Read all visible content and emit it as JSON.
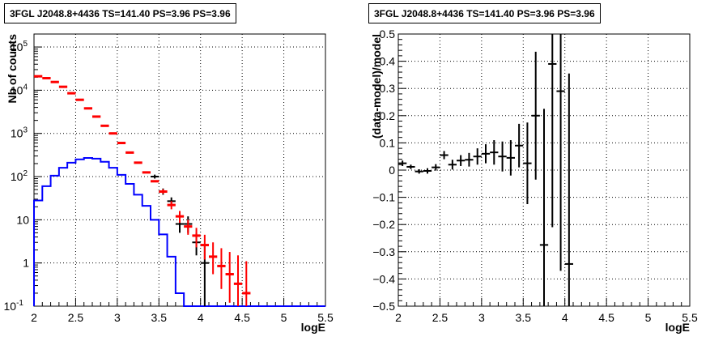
{
  "chart_data": [
    {
      "type": "histogram",
      "title": "3FGL J2048.8+4436 TS=141.40 PS=3.96 PS=3.96",
      "xlabel": "logE",
      "ylabel": "Nb of counts",
      "xlim": [
        2,
        5.5
      ],
      "ylim": [
        0.1,
        200000
      ],
      "y_scale": "log",
      "grid": true,
      "x_ticks": [
        "2",
        "2.5",
        "3",
        "3.5",
        "4",
        "4.5",
        "5",
        "5.5"
      ],
      "y_ticks": [
        {
          "value": 0.1,
          "base": "10",
          "exp": "-1"
        },
        {
          "value": 1,
          "base": "1",
          "exp": ""
        },
        {
          "value": 10,
          "base": "10",
          "exp": ""
        },
        {
          "value": 100,
          "base": "10",
          "exp": "2"
        },
        {
          "value": 1000,
          "base": "10",
          "exp": "3"
        },
        {
          "value": 10000,
          "base": "10",
          "exp": "4"
        },
        {
          "value": 100000,
          "base": "10",
          "exp": "5"
        }
      ],
      "bin_width": 0.1,
      "series": [
        {
          "color": "#ff0000",
          "style": "model-points",
          "x": [
            2.05,
            2.15,
            2.25,
            2.35,
            2.45,
            2.55,
            2.65,
            2.75,
            2.85,
            2.95,
            3.05,
            3.15,
            3.25,
            3.35,
            3.45,
            3.55,
            3.65,
            3.75,
            3.85,
            3.95,
            4.05,
            4.15,
            4.25,
            4.35,
            4.45,
            4.55
          ],
          "y": [
            21000,
            19000,
            15500,
            12000,
            8500,
            6000,
            3800,
            2450,
            1500,
            1000,
            600,
            360,
            210,
            125,
            78,
            45,
            22,
            12,
            7,
            4.3,
            2.6,
            1.4,
            0.85,
            0.55,
            0.33,
            0.2
          ],
          "err_low": [
            null,
            null,
            null,
            null,
            null,
            null,
            null,
            null,
            null,
            null,
            null,
            null,
            null,
            null,
            null,
            40,
            17.5,
            8.5,
            4.5,
            2.3,
            1.2,
            0.55,
            0.25,
            0.12,
            0.05,
            0.03
          ],
          "err_high": [
            null,
            null,
            null,
            null,
            null,
            null,
            null,
            null,
            null,
            null,
            null,
            null,
            null,
            null,
            null,
            51,
            27,
            16,
            10,
            6.5,
            4.5,
            3,
            2.2,
            1.8,
            1.5,
            1.1
          ]
        },
        {
          "color": "#000000",
          "style": "data-points",
          "x": [
            3.45,
            3.55,
            3.65,
            3.75,
            3.85,
            3.95,
            4.05
          ],
          "y": [
            100,
            45,
            27,
            8,
            8,
            3,
            1
          ],
          "err_low": [
            90,
            38,
            22,
            5,
            5,
            1.5,
            0.1
          ],
          "err_high": [
            111,
            53,
            33,
            12,
            12,
            5,
            2.5
          ]
        },
        {
          "color": "#0000ff",
          "style": "step-histogram",
          "x": [
            2.05,
            2.15,
            2.25,
            2.35,
            2.45,
            2.55,
            2.65,
            2.75,
            2.85,
            2.95,
            3.05,
            3.15,
            3.25,
            3.35,
            3.45,
            3.55,
            3.65,
            3.75
          ],
          "y": [
            28,
            60,
            105,
            160,
            210,
            250,
            270,
            260,
            220,
            160,
            110,
            68,
            38,
            21,
            10,
            4.6,
            1.4,
            0.2
          ]
        }
      ]
    },
    {
      "type": "scatter",
      "title": "3FGL J2048.8+4436 TS=141.40 PS=3.96 PS=3.96",
      "xlabel": "logE",
      "ylabel": "(data-model)/model",
      "xlim": [
        2,
        5.5
      ],
      "ylim": [
        -0.5,
        0.5
      ],
      "grid": true,
      "x_ticks": [
        "2",
        "2.5",
        "3",
        "3.5",
        "4",
        "4.5",
        "5",
        "5.5"
      ],
      "y_ticks": [
        "-0.5",
        "-0.4",
        "-0.3",
        "-0.2",
        "-0.1",
        "0",
        "0.1",
        "0.2",
        "0.3",
        "0.4",
        "0.5"
      ],
      "bin_width": 0.1,
      "series": [
        {
          "color": "#000000",
          "x": [
            2.05,
            2.15,
            2.25,
            2.35,
            2.45,
            2.55,
            2.65,
            2.75,
            2.85,
            2.95,
            3.05,
            3.15,
            3.25,
            3.35,
            3.45,
            3.55,
            3.65,
            3.75,
            3.85,
            3.95,
            4.05
          ],
          "y": [
            0.025,
            0.012,
            -0.005,
            -0.003,
            0.01,
            0.055,
            0.02,
            0.035,
            0.038,
            0.05,
            0.06,
            0.065,
            0.05,
            0.045,
            0.09,
            0.025,
            0.2,
            -0.275,
            0.39,
            0.29,
            -0.345
          ],
          "err": [
            0.01,
            0.008,
            0.008,
            0.01,
            0.012,
            0.015,
            0.018,
            0.02,
            0.025,
            0.03,
            0.035,
            0.045,
            0.055,
            0.065,
            0.08,
            0.15,
            0.235,
            0.5,
            0.6,
            0.66,
            0.7
          ]
        }
      ]
    }
  ]
}
